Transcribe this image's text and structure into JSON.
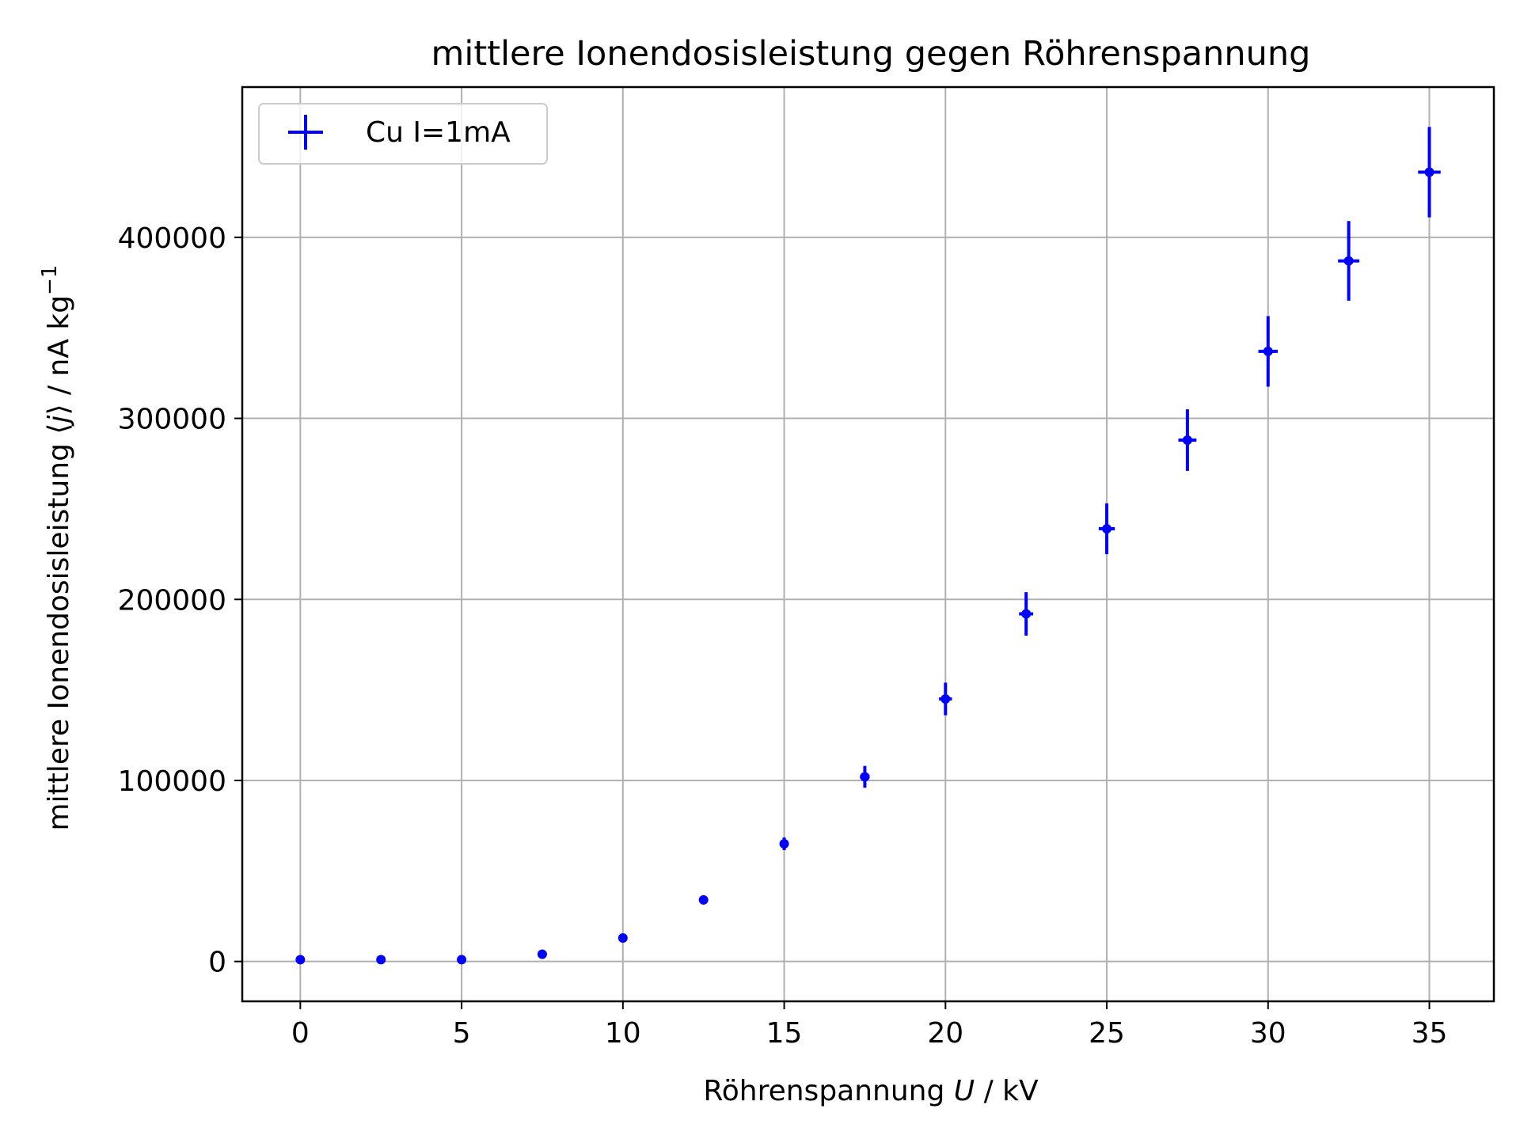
{
  "chart_data": {
    "type": "scatter",
    "title": "mittlere Ionendosisleistung gegen Röhrenspannung",
    "xlabel": {
      "pre": "Röhrenspannung ",
      "var": "U",
      "post": " / kV"
    },
    "ylabel": {
      "pre": "mittlere Ionendosisleistung ⟨",
      "var": "j",
      "post": "⟩ / nA kg",
      "sup": "−1"
    },
    "xlim": [
      -1.8,
      37.0
    ],
    "ylim": [
      -22000,
      483000
    ],
    "xticks": [
      0,
      5,
      10,
      15,
      20,
      25,
      30,
      35
    ],
    "xtick_labels": [
      "0",
      "5",
      "10",
      "15",
      "20",
      "25",
      "30",
      "35"
    ],
    "yticks": [
      0,
      100000,
      200000,
      300000,
      400000
    ],
    "ytick_labels": [
      "0",
      "100000",
      "200000",
      "300000",
      "400000"
    ],
    "grid": true,
    "legend_position": "top-left",
    "series": [
      {
        "name": "Cu I=1mA",
        "color": "#0000ff",
        "marker": "errorbar",
        "points": [
          {
            "x": 0,
            "y": 1000,
            "yerr": 0,
            "xerr": 0
          },
          {
            "x": 2.5,
            "y": 1000,
            "yerr": 0,
            "xerr": 0
          },
          {
            "x": 5,
            "y": 1000,
            "yerr": 0,
            "xerr": 0
          },
          {
            "x": 7.5,
            "y": 4000,
            "yerr": 0,
            "xerr": 0
          },
          {
            "x": 10,
            "y": 13000,
            "yerr": 0,
            "xerr": 0
          },
          {
            "x": 12.5,
            "y": 34000,
            "yerr": 0,
            "xerr": 0
          },
          {
            "x": 15,
            "y": 65000,
            "yerr": 3500,
            "xerr": 0.1
          },
          {
            "x": 17.5,
            "y": 102000,
            "yerr": 6000,
            "xerr": 0.15
          },
          {
            "x": 20,
            "y": 145000,
            "yerr": 9000,
            "xerr": 0.2
          },
          {
            "x": 22.5,
            "y": 192000,
            "yerr": 12000,
            "xerr": 0.22
          },
          {
            "x": 25,
            "y": 239000,
            "yerr": 14000,
            "xerr": 0.25
          },
          {
            "x": 27.5,
            "y": 288000,
            "yerr": 17000,
            "xerr": 0.28
          },
          {
            "x": 30,
            "y": 337000,
            "yerr": 19500,
            "xerr": 0.3
          },
          {
            "x": 32.5,
            "y": 387000,
            "yerr": 22000,
            "xerr": 0.33
          },
          {
            "x": 35,
            "y": 436000,
            "yerr": 25000,
            "xerr": 0.35
          }
        ]
      }
    ]
  }
}
